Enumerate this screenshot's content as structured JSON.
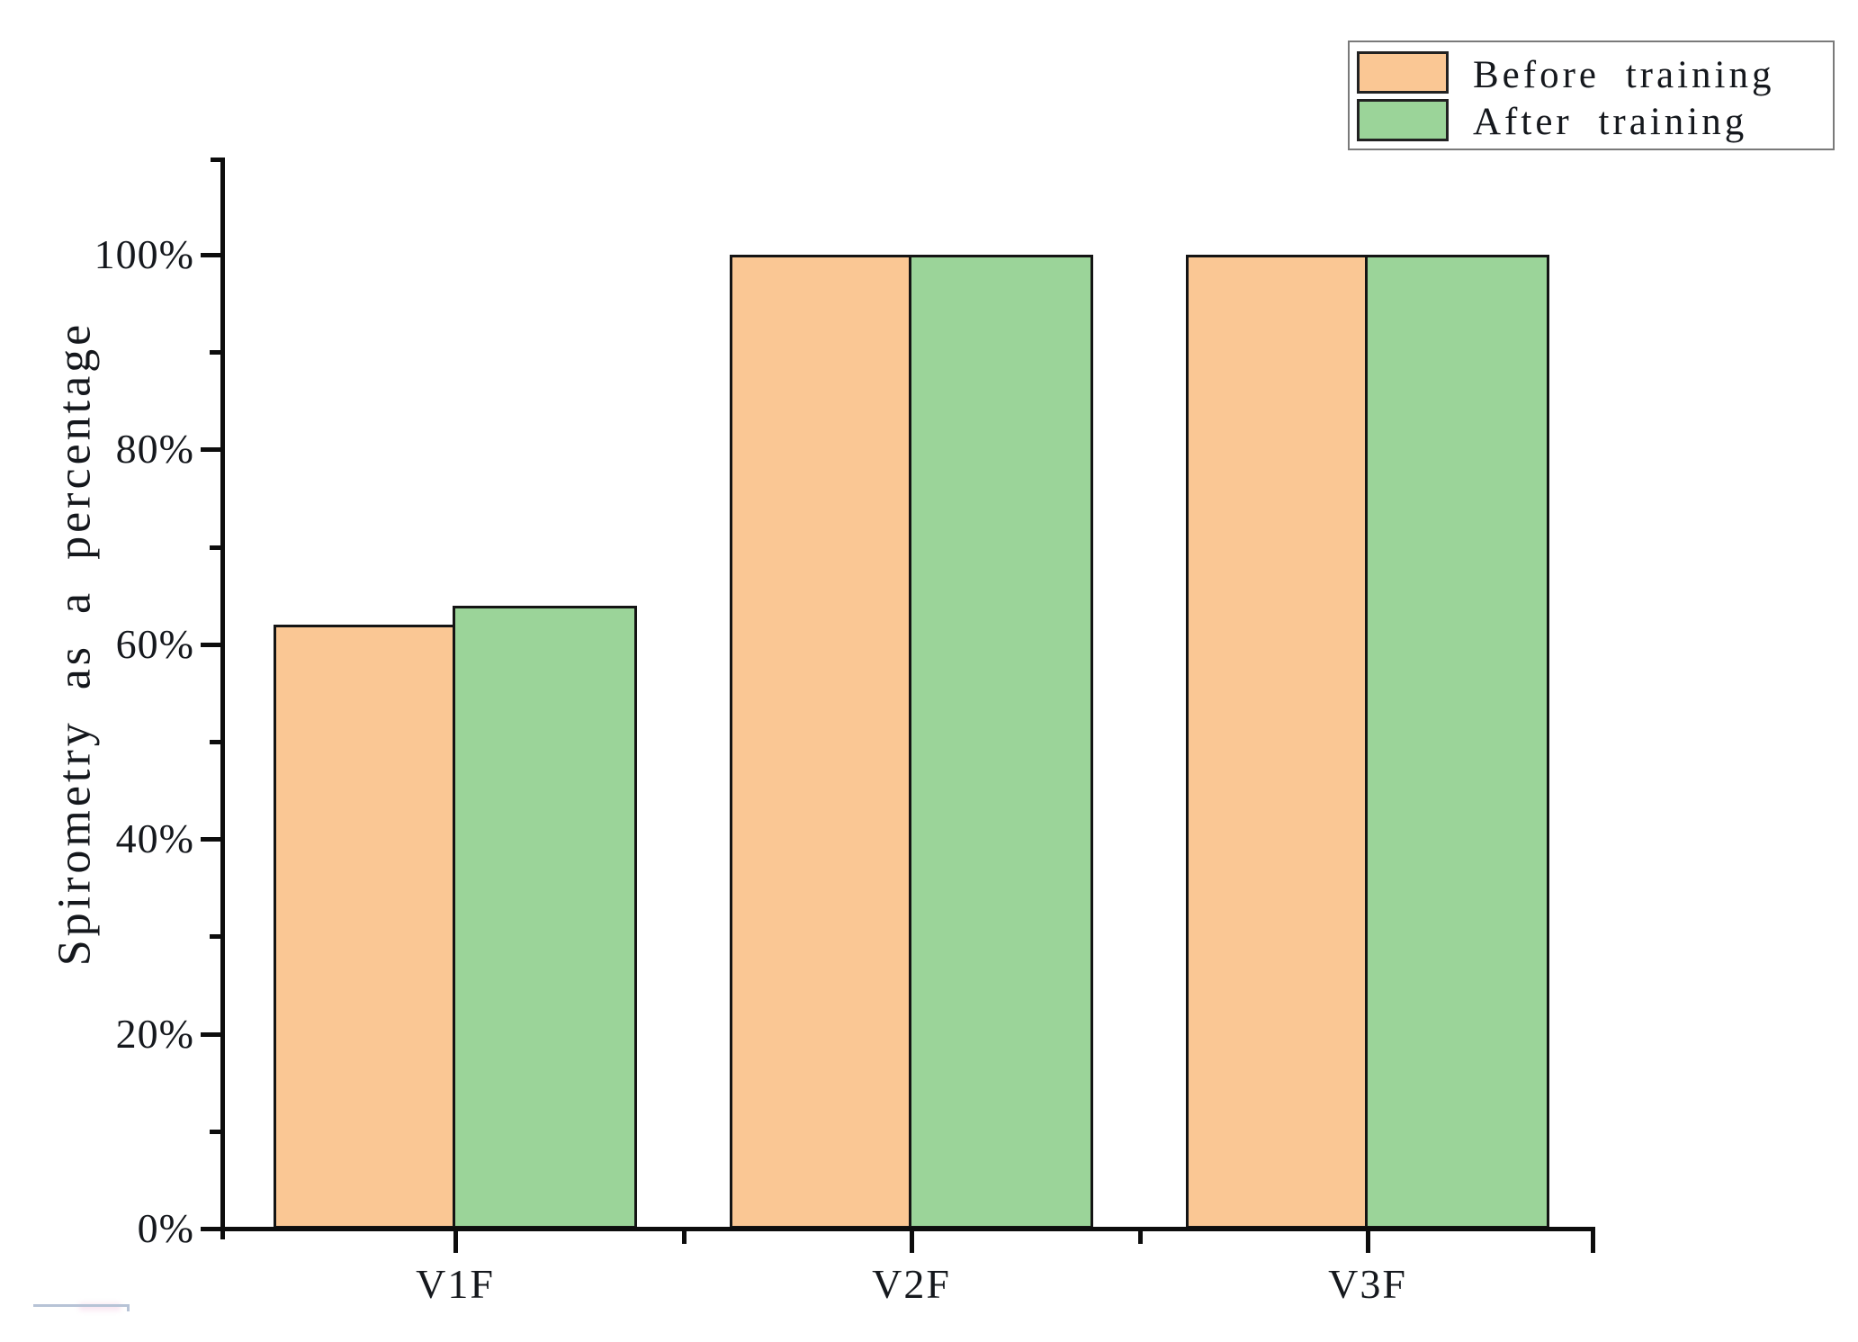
{
  "chart_data": {
    "type": "bar",
    "title": "",
    "xlabel": "",
    "ylabel": "Spirometry as a percentage",
    "categories": [
      "V1F",
      "V2F",
      "V3F"
    ],
    "series": [
      {
        "name": "Before training",
        "color": "#FAC794",
        "values": [
          62,
          100,
          100
        ]
      },
      {
        "name": "After training",
        "color": "#9BD499",
        "values": [
          64,
          100,
          100
        ]
      }
    ],
    "y_ticks": [
      {
        "value": 0,
        "label": "0%"
      },
      {
        "value": 20,
        "label": "20%"
      },
      {
        "value": 40,
        "label": "40%"
      },
      {
        "value": 60,
        "label": "60%"
      },
      {
        "value": 80,
        "label": "80%"
      },
      {
        "value": 100,
        "label": "100%"
      }
    ],
    "y_minor_ticks": [
      10,
      30,
      50,
      70,
      90
    ],
    "ylim": [
      0,
      110
    ],
    "grid": false,
    "legend_position": "top-right",
    "bar_edge_color": "#141414",
    "axis_color": "#0d0d0d"
  },
  "legend": {
    "items": [
      {
        "label": "Before training",
        "color": "#FAC794"
      },
      {
        "label": "After training",
        "color": "#9BD499"
      }
    ]
  }
}
